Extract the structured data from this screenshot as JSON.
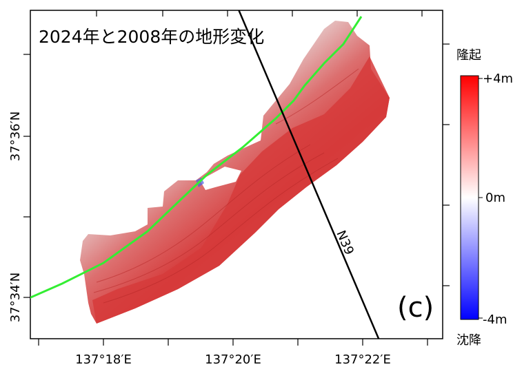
{
  "title": "2024年と2008年の地形変化",
  "panel_label": "(c)",
  "profile_line_label": "N39",
  "x_tick_labels": [
    "137°18′E",
    "137°20′E",
    "137°22′E"
  ],
  "y_tick_labels": [
    "37°36′N",
    "37°34′N"
  ],
  "colorbar": {
    "top_caption": "隆起",
    "bottom_caption": "沈降",
    "max_label": "+4m",
    "mid_label": "0m",
    "min_label": "-4m",
    "max_value_m": 4,
    "min_value_m": -4,
    "colors": {
      "uplift": "#ff0000",
      "zero": "#ffffff",
      "subsidence": "#0000ff"
    }
  },
  "colors": {
    "shoreline": "#33ee33",
    "profile_line": "#000000",
    "frame": "#000000",
    "change_surface_dominant": "#d63a3a",
    "change_surface_light": "#ece2e2"
  },
  "icons": {
    "panel_icon": "map-frame"
  }
}
